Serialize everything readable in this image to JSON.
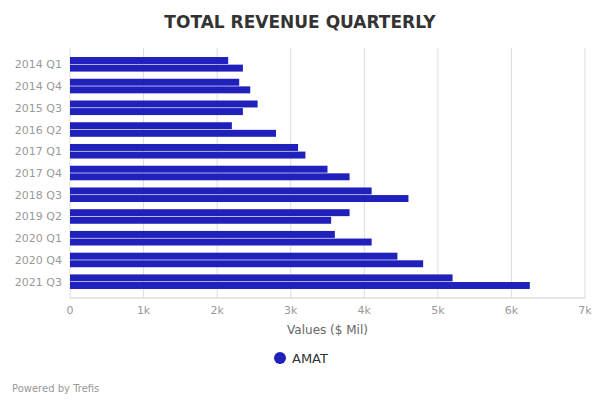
{
  "chart_data": {
    "type": "bar",
    "orientation": "horizontal",
    "title": "TOTAL REVENUE QUARTERLY",
    "x_label": "Values ($ Mil)",
    "categories": [
      "2014 Q1",
      "2014 Q4",
      "2015 Q3",
      "2016 Q2",
      "2017 Q1",
      "2017 Q4",
      "2018 Q3",
      "2019 Q2",
      "2020 Q1",
      "2020 Q4",
      "2021 Q3"
    ],
    "series": [
      {
        "name": "AMAT",
        "color": "#2020bb",
        "values": [
          2150,
          2300,
          2550,
          2200,
          3100,
          3500,
          4100,
          3800,
          3600,
          4450,
          5200
        ]
      },
      {
        "color": "#2020bb",
        "values": [
          2350,
          2450,
          2350,
          2800,
          3200,
          3800,
          4600,
          3550,
          4100,
          4800,
          6250
        ]
      }
    ],
    "xlim": [
      0,
      7000
    ],
    "xticks": [
      0,
      {
        "value": 1000,
        "label": "1k"
      },
      {
        "value": 2000,
        "label": "2k"
      },
      {
        "value": 3000,
        "label": "3k"
      },
      {
        "value": 4000,
        "label": "4k"
      },
      {
        "value": 5000,
        "label": "5k"
      },
      {
        "value": 6000,
        "label": "6k"
      },
      {
        "value": 7000,
        "label": "7k"
      }
    ],
    "grid": true,
    "legend": "bottom",
    "annotations": [
      "Powered by Trefis"
    ]
  }
}
